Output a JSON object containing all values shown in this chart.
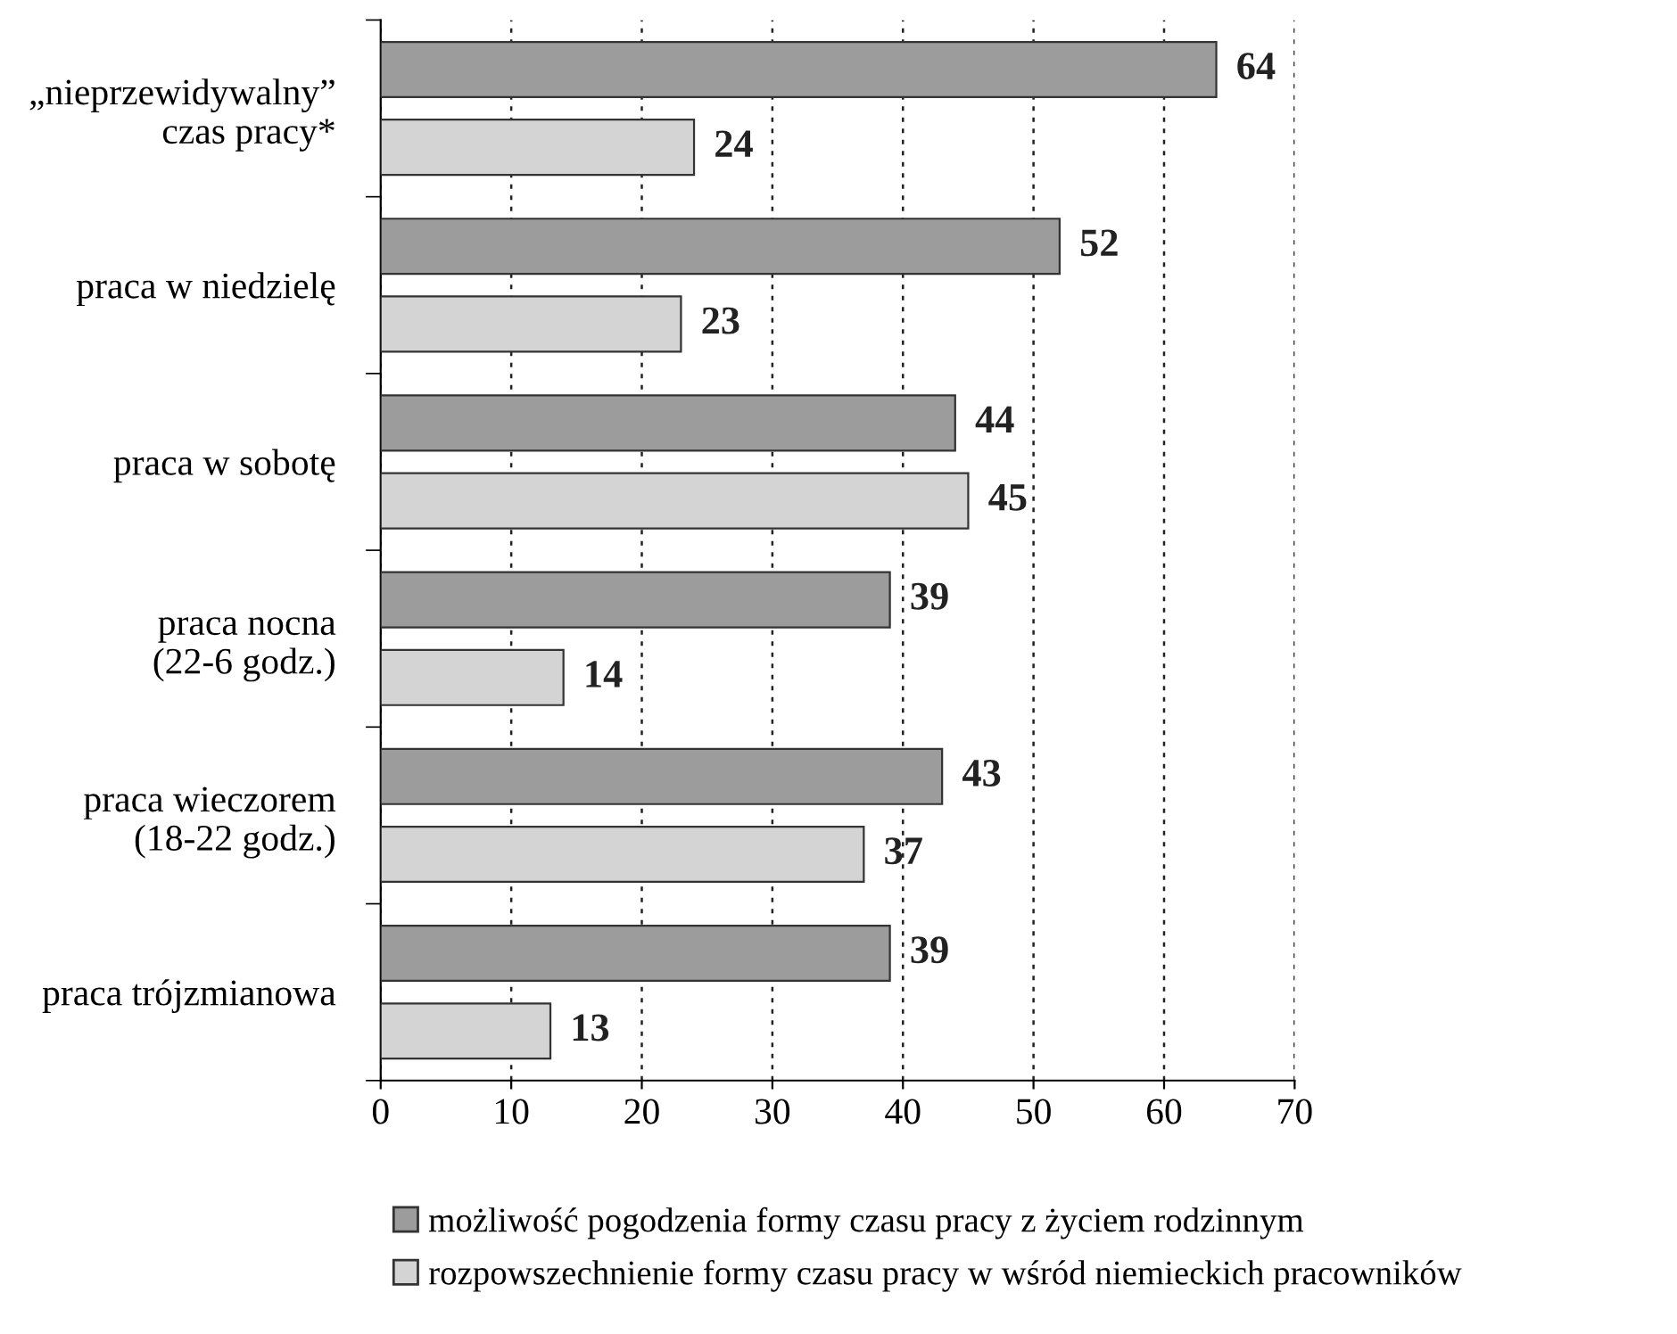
{
  "chart_data": {
    "type": "bar",
    "orientation": "horizontal",
    "categories": [
      "„nieprzewidywalny”\nczas pracy*",
      "praca w niedzielę",
      "praca w sobotę",
      "praca nocna\n(22-6 godz.)",
      "praca wieczorem\n(18-22 godz.)",
      "praca trójzmianowa"
    ],
    "series": [
      {
        "name": "możliwość pogodzenia formy czasu pracy z życiem rodzinnym",
        "color": "#9c9c9c",
        "values": [
          64,
          52,
          44,
          39,
          43,
          39
        ]
      },
      {
        "name": "rozpowszechnienie formy czasu pracy w wśród niemieckich pracowników",
        "color": "#d4d4d4",
        "values": [
          24,
          23,
          45,
          14,
          37,
          13
        ]
      }
    ],
    "xlim": [
      0,
      70
    ],
    "xticks": [
      0,
      10,
      20,
      30,
      40,
      50,
      60,
      70
    ],
    "grid": "x",
    "legend": "bottom",
    "data_labels": true
  }
}
